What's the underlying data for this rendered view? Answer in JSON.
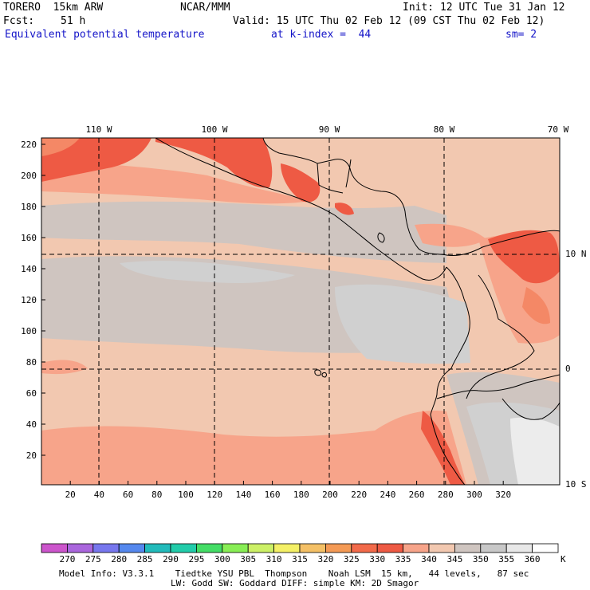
{
  "header": {
    "model": "TORERO  15km ARW",
    "org": "NCAR/MMM",
    "init": "Init: 12 UTC Tue 31 Jan 12",
    "fcst_label": "Fcst:",
    "fcst_value": "51 h",
    "valid": "Valid: 15 UTC Thu 02 Feb 12 (09 CST Thu 02 Feb 12)",
    "field": "Equivalent potential temperature",
    "level": "at k-index =  44",
    "smooth": "sm= 2"
  },
  "map": {
    "lon_labels": [
      "110 W",
      "100 W",
      "90 W",
      "80 W",
      "70 W"
    ],
    "lat_labels": [
      "10 N",
      "0",
      "10 S"
    ],
    "x_ticks": [
      "20",
      "40",
      "60",
      "80",
      "100",
      "120",
      "140",
      "160",
      "180",
      "200",
      "220",
      "240",
      "260",
      "280",
      "300",
      "320"
    ],
    "y_ticks": [
      "220",
      "200",
      "180",
      "160",
      "140",
      "120",
      "100",
      "80",
      "60",
      "40",
      "20"
    ],
    "colors": {
      "light_salmon": "#f2c8b0",
      "salmon": "#f7a48a",
      "orange_red": "#f48866",
      "red": "#ee5a44",
      "gray": "#cfc5c0",
      "light_gray": "#d0d0d0",
      "pale": "#ececec"
    }
  },
  "colorbar": {
    "values": [
      "270",
      "275",
      "280",
      "285",
      "290",
      "295",
      "300",
      "305",
      "310",
      "315",
      "320",
      "325",
      "330",
      "335",
      "340",
      "345",
      "350",
      "355",
      "360"
    ],
    "unit": "K",
    "colors": [
      "#cc55cc",
      "#aa66dd",
      "#7777ee",
      "#5588ee",
      "#22bbbb",
      "#22ccaa",
      "#44dd66",
      "#88ee55",
      "#ccf066",
      "#f4f066",
      "#f4c066",
      "#f49a55",
      "#f26a4a",
      "#ee5a44",
      "#f7a48a",
      "#f2c8b0",
      "#cfc5c0",
      "#c8c8c8",
      "#e8e8e8",
      "#ffffff"
    ]
  },
  "footer": {
    "line1": "Model Info: V3.3.1    Tiedtke YSU PBL  Thompson    Noah LSM  15 km,   44 levels,   87 sec",
    "line2": "LW: Godd SW: Goddard DIFF: simple KM: 2D Smagor"
  }
}
